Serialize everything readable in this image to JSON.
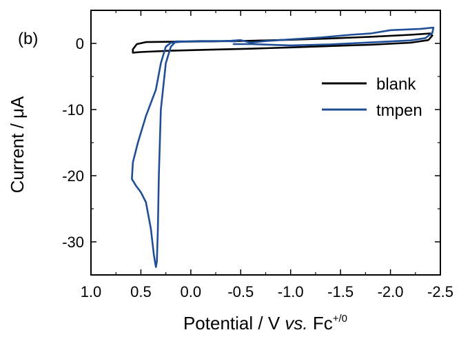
{
  "chart_data": {
    "type": "line",
    "panel_label": "(b)",
    "xlabel": {
      "prefix": "Potential / V ",
      "vs": "vs.",
      "unit": " Fc",
      "superscript": "+/0"
    },
    "ylabel": {
      "prefix": "Current / ",
      "mu": "μ",
      "unit": "A"
    },
    "xlim": [
      1.0,
      -2.5
    ],
    "ylim": [
      -35,
      5
    ],
    "x_ticks": [
      1.0,
      0.5,
      0.0,
      -0.5,
      -1.0,
      -1.5,
      -2.0,
      -2.5
    ],
    "x_tick_labels": [
      "1.0",
      "0.5",
      "0.0",
      "-0.5",
      "-1.0",
      "-1.5",
      "-2.0",
      "-2.5"
    ],
    "y_ticks": [
      0,
      -10,
      -20,
      -30
    ],
    "y_tick_labels": [
      "0",
      "-10",
      "-20",
      "-30"
    ],
    "legend_position": "right, upper middle",
    "grid": false,
    "series": [
      {
        "name": "blank",
        "color": "#000000",
        "points": [
          [
            0.58,
            -1.4
          ],
          [
            0.5,
            -1.3
          ],
          [
            0.2,
            -1.1
          ],
          [
            -0.2,
            -0.95
          ],
          [
            -0.6,
            -0.8
          ],
          [
            -1.0,
            -0.6
          ],
          [
            -1.4,
            -0.4
          ],
          [
            -1.8,
            -0.2
          ],
          [
            -2.2,
            0.1
          ],
          [
            -2.38,
            0.5
          ],
          [
            -2.42,
            1.2
          ],
          [
            -2.4,
            1.5
          ],
          [
            -2.2,
            1.3
          ],
          [
            -1.8,
            1.0
          ],
          [
            -1.4,
            0.75
          ],
          [
            -1.0,
            0.55
          ],
          [
            -0.6,
            0.4
          ],
          [
            -0.2,
            0.3
          ],
          [
            0.2,
            0.25
          ],
          [
            0.45,
            0.2
          ],
          [
            0.54,
            -0.1
          ],
          [
            0.58,
            -0.9
          ],
          [
            0.58,
            -1.4
          ]
        ]
      },
      {
        "name": "tmpen",
        "color": "#1f4e96",
        "points": [
          [
            -0.43,
            -0.1
          ],
          [
            -0.6,
            -0.1
          ],
          [
            -1.0,
            -0.3
          ],
          [
            -1.4,
            -0.15
          ],
          [
            -1.8,
            0.15
          ],
          [
            -2.2,
            0.45
          ],
          [
            -2.35,
            0.8
          ],
          [
            -2.42,
            1.6
          ],
          [
            -2.43,
            2.4
          ],
          [
            -2.3,
            2.2
          ],
          [
            -2.0,
            2.0
          ],
          [
            -1.8,
            1.5
          ],
          [
            -1.6,
            1.3
          ],
          [
            -1.3,
            0.9
          ],
          [
            -1.0,
            0.6
          ],
          [
            -0.75,
            0.35
          ],
          [
            -0.6,
            0.1
          ],
          [
            -0.5,
            0.5
          ],
          [
            -0.4,
            0.4
          ],
          [
            -0.2,
            0.3
          ],
          [
            0.0,
            0.3
          ],
          [
            0.15,
            0.3
          ],
          [
            0.2,
            -0.5
          ],
          [
            0.25,
            -3.0
          ],
          [
            0.3,
            -10.0
          ],
          [
            0.32,
            -20.0
          ],
          [
            0.33,
            -28.0
          ],
          [
            0.34,
            -33.0
          ],
          [
            0.35,
            -33.8
          ],
          [
            0.37,
            -32.0
          ],
          [
            0.4,
            -28.0
          ],
          [
            0.45,
            -24.0
          ],
          [
            0.5,
            -22.5
          ],
          [
            0.55,
            -21.5
          ],
          [
            0.59,
            -20.5
          ],
          [
            0.58,
            -18.0
          ],
          [
            0.53,
            -15.0
          ],
          [
            0.45,
            -11.0
          ],
          [
            0.35,
            -7.0
          ],
          [
            0.3,
            -3.0
          ],
          [
            0.25,
            -0.5
          ],
          [
            0.2,
            0.1
          ],
          [
            0.05,
            0.3
          ],
          [
            -0.1,
            0.35
          ],
          [
            -0.3,
            0.35
          ],
          [
            -0.45,
            0.3
          ]
        ]
      }
    ]
  }
}
